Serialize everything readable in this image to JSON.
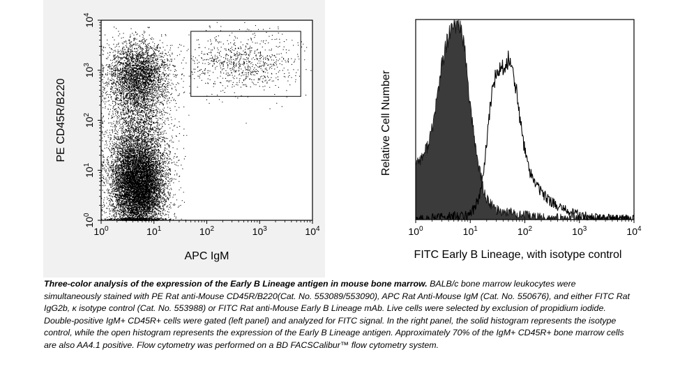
{
  "chart_data": [
    {
      "type": "scatter",
      "panel": "left",
      "xlabel": "APC IgM",
      "ylabel": "PE CD45R/B220",
      "x_scale": "log",
      "y_scale": "log",
      "xlim": [
        1,
        10000
      ],
      "ylim": [
        1,
        10000
      ],
      "ticks": [
        {
          "base": "10",
          "exp": "0"
        },
        {
          "base": "10",
          "exp": "1"
        },
        {
          "base": "10",
          "exp": "2"
        },
        {
          "base": "10",
          "exp": "3"
        },
        {
          "base": "10",
          "exp": "4"
        }
      ],
      "gate": {
        "x": [
          50,
          6000
        ],
        "y": [
          300,
          6000
        ]
      },
      "populations": [
        {
          "x_center": 5,
          "y_center": 5,
          "x_spread_decades": 0.25,
          "y_spread_decades": 0.45,
          "events": 9000
        },
        {
          "x_center": 5,
          "y_center": 800,
          "x_spread_decades": 0.28,
          "y_spread_decades": 0.35,
          "events": 3200
        },
        {
          "x_center": 500,
          "y_center": 1500,
          "x_spread_decades": 0.55,
          "y_spread_decades": 0.3,
          "events": 800
        },
        {
          "x_center": 5,
          "y_center": 60,
          "x_spread_decades": 0.3,
          "y_spread_decades": 0.6,
          "events": 2200
        }
      ],
      "grid": false,
      "colors": {
        "points": "#000000",
        "background": "#f1f1f1"
      }
    },
    {
      "type": "area",
      "panel": "right",
      "xlabel": "FITC Early B Lineage, with isotype control",
      "ylabel": "Relative Cell Number",
      "x_scale": "log",
      "xlim": [
        1,
        10000
      ],
      "ylim": [
        0,
        1
      ],
      "ticks": [
        {
          "base": "10",
          "exp": "0"
        },
        {
          "base": "10",
          "exp": "1"
        },
        {
          "base": "10",
          "exp": "2"
        },
        {
          "base": "10",
          "exp": "3"
        },
        {
          "base": "10",
          "exp": "4"
        }
      ],
      "series": [
        {
          "style": "filled",
          "x": [
            1,
            1.3,
            1.6,
            2,
            2.5,
            3,
            3.5,
            4,
            4.5,
            5,
            5.5,
            6,
            6.5,
            7,
            8,
            9,
            10,
            11,
            12,
            14,
            16,
            18,
            20,
            25,
            30,
            40,
            50,
            70,
            100,
            150,
            200,
            300,
            500,
            700,
            1000,
            2000,
            5000,
            10000
          ],
          "y": [
            0.29,
            0.31,
            0.36,
            0.45,
            0.62,
            0.77,
            0.85,
            0.91,
            0.95,
            0.96,
            0.97,
            0.99,
            0.98,
            0.92,
            0.83,
            0.7,
            0.56,
            0.47,
            0.4,
            0.28,
            0.2,
            0.14,
            0.1,
            0.07,
            0.05,
            0.04,
            0.04,
            0.03,
            0.02,
            0.015,
            0.01,
            0.007,
            0.004,
            0.003,
            0.002,
            0.001,
            0.0005,
            0
          ]
        },
        {
          "style": "open",
          "x": [
            1,
            2,
            3,
            5,
            7,
            10,
            12,
            14,
            16,
            18,
            20,
            22,
            25,
            28,
            30,
            33,
            36,
            40,
            45,
            50,
            55,
            60,
            70,
            80,
            100,
            120,
            150,
            200,
            250,
            300,
            400,
            500,
            700,
            1000,
            1500,
            2000,
            3000,
            5000,
            10000
          ],
          "y": [
            0,
            0.005,
            0.01,
            0.015,
            0.02,
            0.03,
            0.06,
            0.1,
            0.16,
            0.26,
            0.38,
            0.5,
            0.63,
            0.7,
            0.73,
            0.75,
            0.76,
            0.77,
            0.78,
            0.8,
            0.79,
            0.76,
            0.64,
            0.52,
            0.34,
            0.25,
            0.19,
            0.14,
            0.11,
            0.09,
            0.065,
            0.05,
            0.035,
            0.02,
            0.012,
            0.006,
            0.003,
            0.001,
            0
          ]
        }
      ],
      "grid": false,
      "colors": {
        "fill": "#3b3b3b",
        "line": "#000000",
        "background": "#ffffff"
      }
    }
  ],
  "caption": {
    "title": "Three-color analysis of the expression of the Early B Lineage antigen in mouse bone marrow.",
    "body": " BALB/c bone marrow leukocytes were simultaneously stained with PE Rat anti-Mouse CD45R/B220(Cat. No. 553089/553090), APC Rat Anti-Mouse IgM (Cat. No. 550676), and either FITC Rat IgG2b, κ isotype control (Cat. No. 553988) or FITC Rat anti-Mouse Early B Lineage mAb. Live cells were selected by exclusion of propidium iodide. Double-positive IgM+ CD45R+ cells were gated (left panel) and analyzed for FITC signal. In the right panel, the solid histogram represents the isotype control, while the open histogram represents the expression of the Early B Lineage antigen. Approximately 70% of the IgM+ CD45R+ bone marrow cells are also AA4.1 positive. Flow cytometry was performed on a BD FACSCalibur™ flow cytometry system."
  }
}
